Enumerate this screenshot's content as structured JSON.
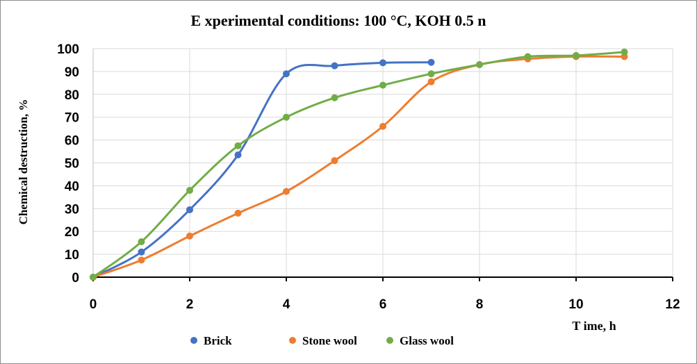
{
  "chart_data": {
    "type": "line",
    "title": "E xperimental conditions: 100 °C, KOH 0.5 n",
    "xlabel": "T ime, h",
    "ylabel": "Chemical destruction, %",
    "xlim": [
      0,
      12
    ],
    "ylim": [
      0,
      100
    ],
    "xticks": [
      0,
      2,
      4,
      6,
      8,
      10,
      12
    ],
    "yticks": [
      0,
      10,
      20,
      30,
      40,
      50,
      60,
      70,
      80,
      90,
      100
    ],
    "grid": true,
    "legend_position": "bottom",
    "series": [
      {
        "name": "Brick",
        "color": "#4472C4",
        "x": [
          0,
          1,
          2,
          3,
          4,
          5,
          6,
          7
        ],
        "y": [
          0,
          11,
          29.5,
          53.5,
          89,
          92.5,
          93.8,
          94
        ]
      },
      {
        "name": "Stone wool",
        "color": "#ED7D31",
        "x": [
          0,
          1,
          2,
          3,
          4,
          5,
          6,
          7,
          8,
          9,
          10,
          11
        ],
        "y": [
          0,
          7.5,
          18,
          28,
          37.5,
          51,
          66,
          85.5,
          93,
          95.5,
          96.5,
          96.5
        ]
      },
      {
        "name": "Glass wool",
        "color": "#70AD47",
        "x": [
          0,
          1,
          2,
          3,
          4,
          5,
          6,
          7,
          8,
          9,
          10,
          11
        ],
        "y": [
          0,
          15.5,
          38,
          57.5,
          70,
          78.5,
          84,
          89,
          93,
          96.5,
          97,
          98.5
        ]
      }
    ]
  }
}
